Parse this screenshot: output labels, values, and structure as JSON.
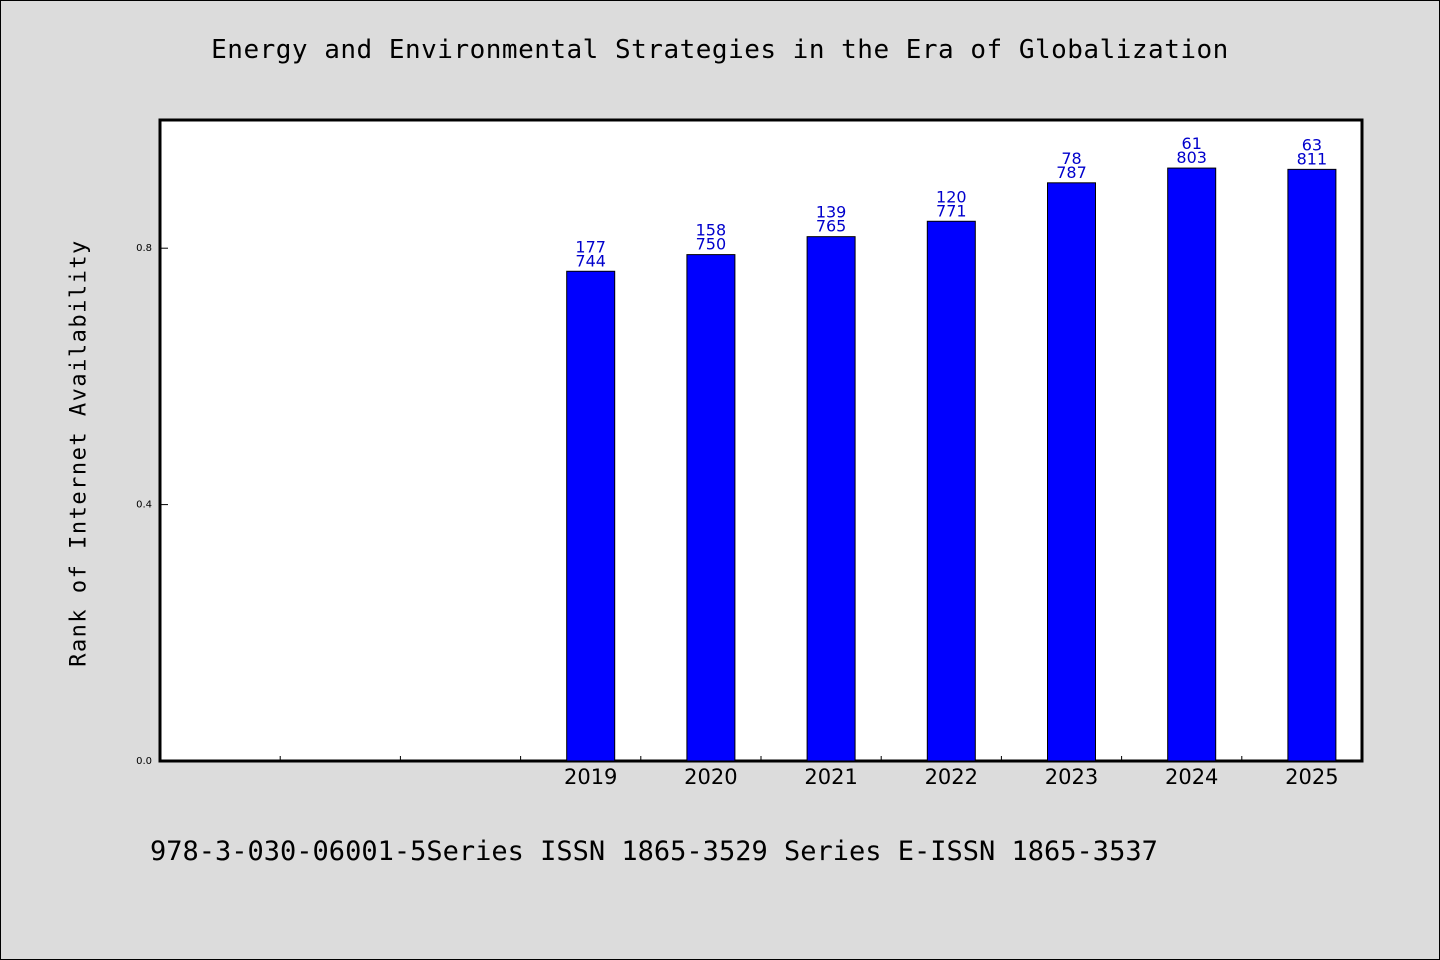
{
  "title": "Energy and Environmental Strategies in the Era of Globalization",
  "footer": "978-3-030-06001-5Series ISSN 1865-3529 Series E-ISSN 1865-3537",
  "colors": {
    "background": "#dcdcdc",
    "plot_background": "#ffffff",
    "bar": "#0000ff",
    "bar_label": "#0000cc"
  },
  "chart_data": {
    "type": "bar",
    "title": "Energy and Environmental Strategies in the Era of Globalization",
    "xlabel": "",
    "ylabel": "Rank of Internet Availability",
    "categories": [
      "",
      "",
      "",
      "2019",
      "2020",
      "2021",
      "2022",
      "2023",
      "2024",
      "2025"
    ],
    "values": [
      null,
      null,
      null,
      0.764,
      0.79,
      0.818,
      0.842,
      0.902,
      0.925,
      0.923
    ],
    "labels_upper": [
      "",
      "",
      "",
      "177",
      "158",
      "139",
      "120",
      "78",
      "61",
      "63"
    ],
    "labels_lower": [
      "",
      "",
      "",
      "744",
      "750",
      "765",
      "771",
      "787",
      "803",
      "811"
    ],
    "yticks": [
      0.0,
      0.4,
      0.8
    ],
    "ytick_labels": [
      "0.0",
      "0.4",
      "0.8"
    ],
    "ylim": [
      0,
      1.0
    ],
    "grid": false,
    "legend": "none"
  }
}
